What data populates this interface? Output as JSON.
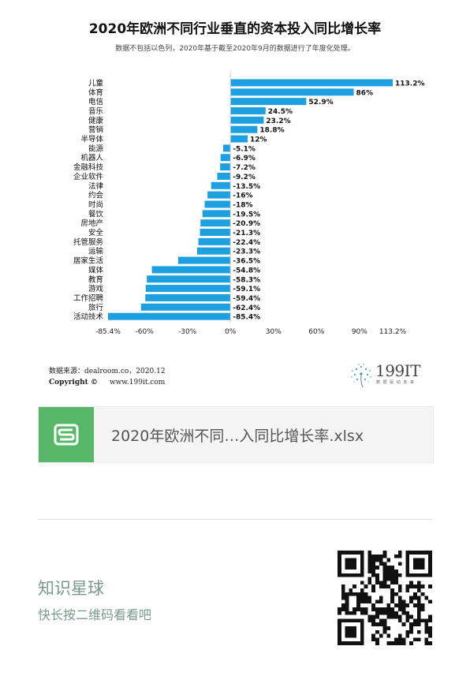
{
  "header": {
    "title": "2020年欧洲不同行业垂直的资本投入同比增长率",
    "subtitle": "数据不包括以色列，2020年基于截至2020年9月的数据进行了年度化处理。"
  },
  "chart_data": {
    "type": "bar",
    "orientation": "horizontal",
    "title": "2020年欧洲不同行业垂直的资本投入同比增长率",
    "subtitle": "数据不包括以色列，2020年基于截至2020年9月的数据进行了年度化处理。",
    "xlabel": "",
    "ylabel": "",
    "unit": "%",
    "categories": [
      "儿童",
      "体育",
      "电信",
      "音乐",
      "健康",
      "营销",
      "半导体",
      "能源",
      "机器人",
      "金融科技",
      "企业软件",
      "法律",
      "约会",
      "时尚",
      "餐饮",
      "房地产",
      "安全",
      "托管服务",
      "运输",
      "居家生活",
      "媒体",
      "教育",
      "游戏",
      "工作招聘",
      "旅行",
      "活动技术"
    ],
    "values": [
      113.2,
      86,
      52.9,
      24.5,
      23.2,
      18.8,
      12,
      -5.1,
      -6.9,
      -7.2,
      -9.2,
      -13.5,
      -16,
      -18,
      -19.5,
      -20.9,
      -21.3,
      -22.4,
      -23.3,
      -36.5,
      -54.8,
      -58.3,
      -59.1,
      -59.4,
      -62.4,
      -85.4
    ],
    "value_labels": [
      "113.2%",
      "86%",
      "52.9%",
      "24.5%",
      "23.2%",
      "18.8%",
      "12%",
      "-5.1%",
      "-6.9%",
      "-7.2%",
      "-9.2%",
      "-13.5%",
      "-16%",
      "-18%",
      "-19.5%",
      "-20.9%",
      "-21.3%",
      "-22.4%",
      "-23.3%",
      "-36.5%",
      "-54.8%",
      "-58.3%",
      "-59.1%",
      "-59.4%",
      "-62.4%",
      "-85.4%"
    ],
    "xlim": [
      -85.4,
      113.2
    ],
    "x_ticks": [
      -85.4,
      -60,
      -30,
      0,
      30,
      60,
      90,
      113.2
    ],
    "x_tick_labels": [
      "-85.4%",
      "-60%",
      "-30%",
      "0%",
      "30%",
      "60%",
      "90%",
      "113.2%"
    ],
    "grid": false,
    "legend": "none",
    "bar_color": "#1e9fe0"
  },
  "footer": {
    "source": "数据来源：dealroom.co，2020.12",
    "copyright_label": "Copyright ©",
    "copyright_site": "www.199it.com",
    "logo_text": "199IT",
    "logo_sub": "数 据 驱 动 未 来"
  },
  "file_card": {
    "file_name": "2020年欧洲不同…入同比增长率.xlsx",
    "icon": "spreadsheet-s-icon",
    "icon_color": "#58b86a"
  },
  "promo": {
    "title": "知识星球",
    "subtitle": "快长按二维码看看吧",
    "qr_icon": "qr-code-icon"
  }
}
